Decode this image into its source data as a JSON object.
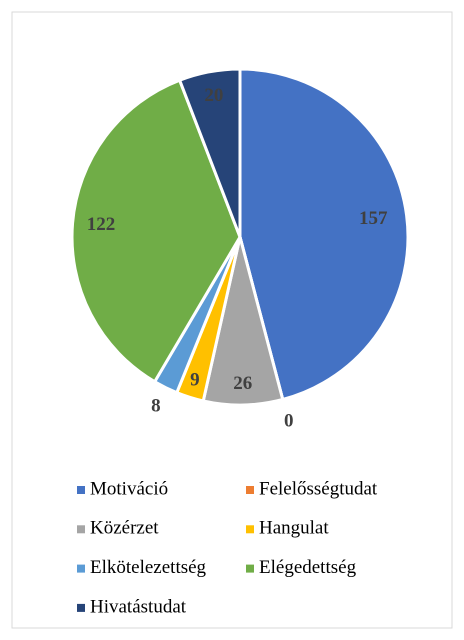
{
  "chart_data": {
    "type": "pie",
    "categories": [
      "Motiváció",
      "Felelősségtudat",
      "Közérzet",
      "Hangulat",
      "Elkötelezettség",
      "Elégedettség",
      "Hivatástudat"
    ],
    "values": [
      157,
      0,
      26,
      9,
      8,
      122,
      20
    ],
    "colors": [
      "#4472c4",
      "#ed7d31",
      "#a5a5a5",
      "#ffc000",
      "#5b9bd5",
      "#70ad47",
      "#264478"
    ],
    "legend": "bottom"
  }
}
